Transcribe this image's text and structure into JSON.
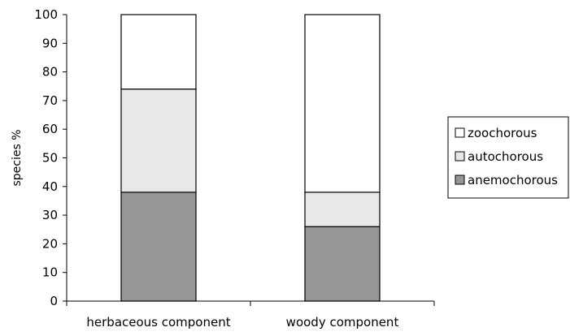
{
  "chart_data": {
    "type": "bar",
    "stacked": true,
    "title": "",
    "xlabel": "",
    "ylabel": "species %",
    "ylim": [
      0,
      100
    ],
    "yticks": [
      0,
      10,
      20,
      30,
      40,
      50,
      60,
      70,
      80,
      90,
      100
    ],
    "categories": [
      "herbaceous component",
      "woody component"
    ],
    "series": [
      {
        "name": "anemochorous",
        "color": "#969696",
        "values": [
          38,
          26
        ]
      },
      {
        "name": "autochorous",
        "color": "#e8e8e8",
        "values": [
          36,
          12
        ]
      },
      {
        "name": "zoochorous",
        "color": "#ffffff",
        "values": [
          26,
          62
        ]
      }
    ],
    "legend": {
      "position": "right",
      "order": [
        "zoochorous",
        "autochorous",
        "anemochorous"
      ]
    },
    "grid": false
  }
}
